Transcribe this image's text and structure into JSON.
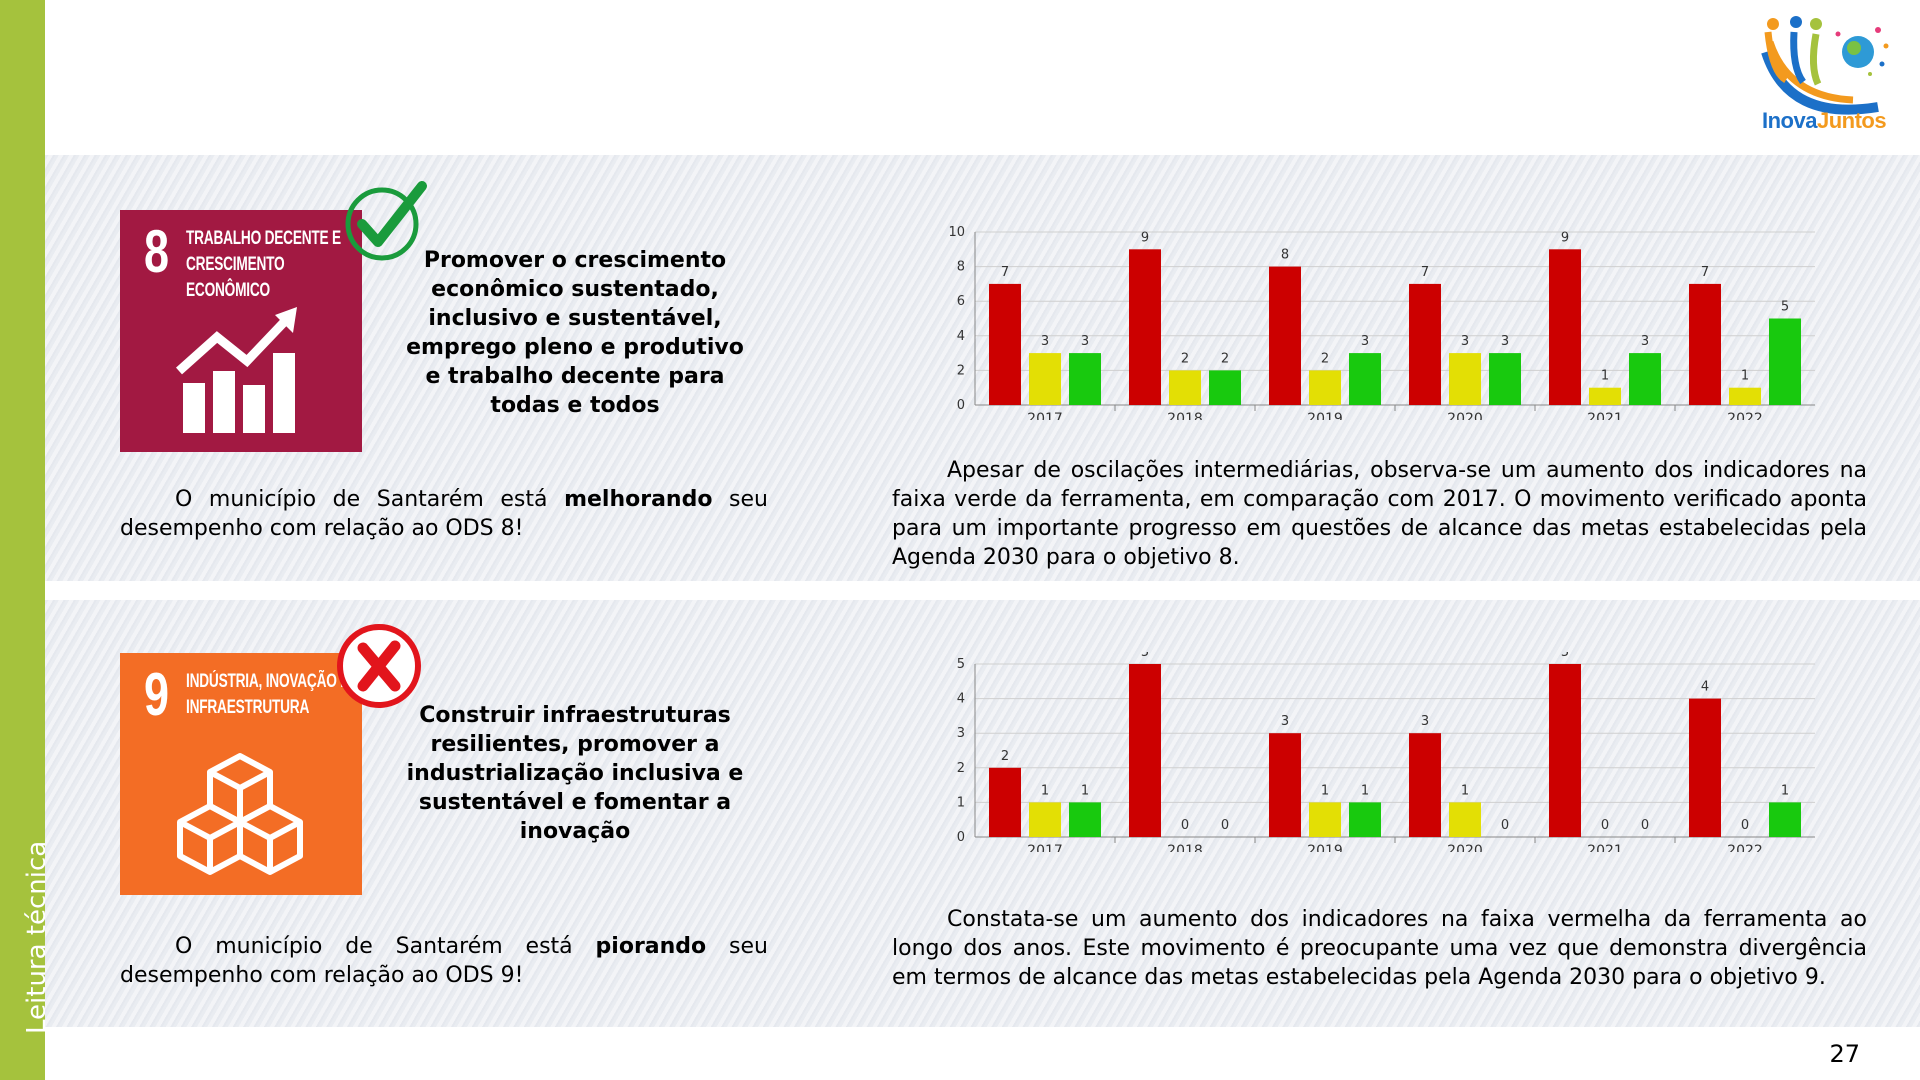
{
  "sidebar": {
    "label": "Leitura técnica"
  },
  "logo": {
    "text_a": "Inova",
    "text_b": "Juntos"
  },
  "page_number": "27",
  "colors": {
    "red": "#cc0000",
    "yellow": "#e3df05",
    "green": "#18c90e",
    "sdg8": "#a21942",
    "sdg9": "#f36d25",
    "sidebar": "#a5c23d"
  },
  "ods8": {
    "number": "8",
    "title": "TRABALHO DECENTE E CRESCIMENTO ECONÔMICO",
    "icon": "growth-chart-icon",
    "status_icon": "check-icon",
    "goal_text": "Promover o crescimento econômico sustentado, inclusivo e sustentável, emprego pleno e produtivo e trabalho decente para todas e todos",
    "status_prefix": "O município de Santarém está ",
    "status_word": "melhorando",
    "status_suffix": " seu desempenho com relação ao ODS 8!",
    "analysis": "Apesar de oscilações intermediárias, observa-se um aumento dos indicadores na faixa verde da ferramenta, em comparação com 2017. O movimento verificado aponta para um importante progresso em questões de alcance das metas estabelecidas pela Agenda 2030 para o objetivo 8."
  },
  "ods9": {
    "number": "9",
    "title": "INDÚSTRIA, INOVAÇÃO E INFRAESTRUTURA",
    "icon": "cubes-icon",
    "status_icon": "cross-icon",
    "goal_text": "Construir infraestruturas resilientes, promover a industrialização inclusiva e sustentável e fomentar a inovação",
    "status_prefix": "O município de Santarém está ",
    "status_word": "piorando",
    "status_suffix": " seu desempenho com relação ao ODS 9!",
    "analysis": "Constata-se um aumento dos indicadores na faixa vermelha da ferramenta ao longo dos anos. Este movimento é preocupante uma vez que demonstra divergência em termos de alcance das metas estabelecidas pela Agenda 2030 para o objetivo 9."
  },
  "chart_data": [
    {
      "type": "bar",
      "categories": [
        "2017",
        "2018",
        "2019",
        "2020",
        "2021",
        "2022"
      ],
      "ylim": [
        0,
        10
      ],
      "yticks": [
        0,
        2,
        4,
        6,
        8,
        10
      ],
      "grid": true,
      "series": [
        {
          "color": "#cc0000",
          "values": [
            7,
            9,
            8,
            7,
            9,
            7
          ]
        },
        {
          "color": "#e3df05",
          "values": [
            3,
            2,
            2,
            3,
            1,
            1
          ]
        },
        {
          "color": "#18c90e",
          "values": [
            3,
            2,
            3,
            3,
            3,
            5
          ]
        }
      ]
    },
    {
      "type": "bar",
      "categories": [
        "2017",
        "2018",
        "2019",
        "2020",
        "2021",
        "2022"
      ],
      "ylim": [
        0,
        5
      ],
      "yticks": [
        0,
        1,
        2,
        3,
        4,
        5
      ],
      "grid": true,
      "series": [
        {
          "color": "#cc0000",
          "values": [
            2,
            5,
            3,
            3,
            5,
            4
          ]
        },
        {
          "color": "#e3df05",
          "values": [
            1,
            0,
            1,
            1,
            0,
            0
          ]
        },
        {
          "color": "#18c90e",
          "values": [
            1,
            0,
            1,
            0,
            0,
            1
          ]
        }
      ]
    }
  ]
}
